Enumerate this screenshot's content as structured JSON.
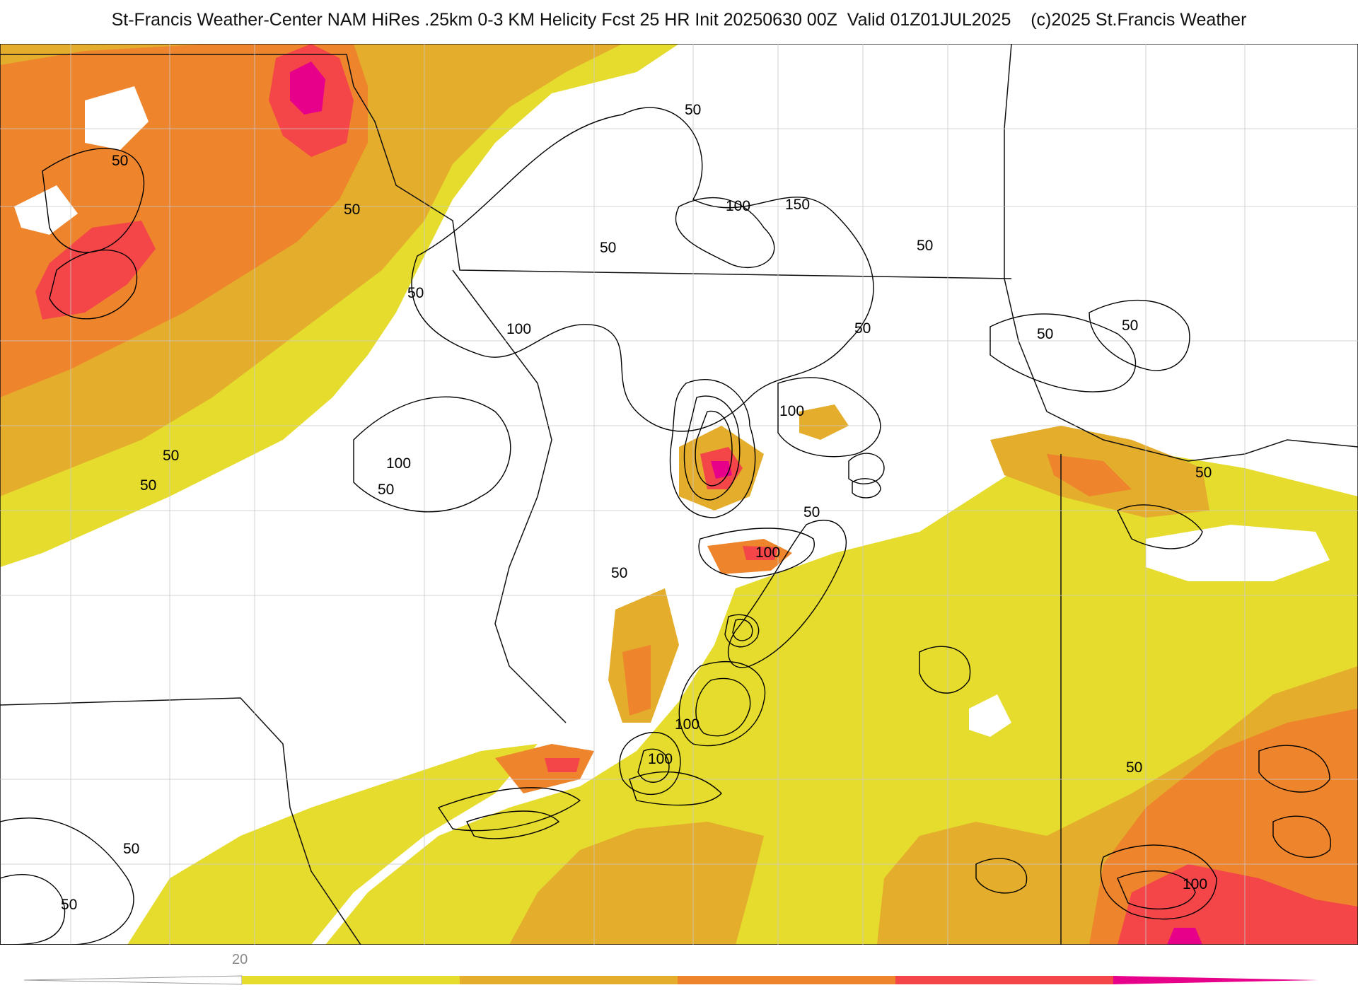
{
  "header": {
    "title": "St-Francis Weather-Center NAM HiRes .25km 0-3 KM Helicity Fcst 25 HR Init 20250630 00Z  Valid 01Z01JUL2025    (c)2025 St.Francis Weather"
  },
  "map": {
    "contour_labels": [
      "50",
      "50",
      "50",
      "50",
      "50",
      "100",
      "150",
      "50",
      "50",
      "100",
      "50",
      "50",
      "50",
      "100",
      "50",
      "50",
      "50",
      "50",
      "100",
      "100",
      "50",
      "100",
      "100",
      "50",
      "50",
      "50",
      "100"
    ]
  },
  "colorbar": {
    "tick_labels": [
      "20"
    ],
    "colors": [
      "#e6dc2e",
      "#e4ad2c",
      "#ee842c",
      "#f44548",
      "#e6008a"
    ]
  },
  "colors": {
    "yellow": "#e6dc2e",
    "gold": "#e4ad2c",
    "orange": "#ee842c",
    "red": "#f44548",
    "magenta": "#e6008a"
  }
}
